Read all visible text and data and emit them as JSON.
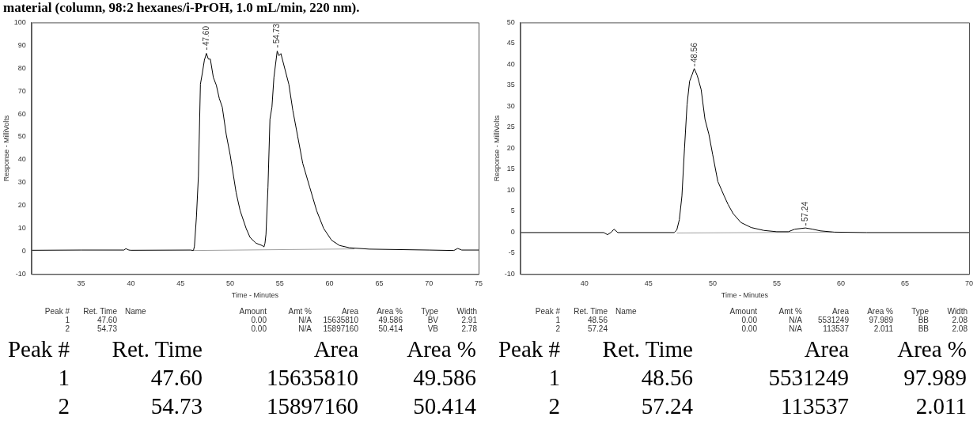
{
  "chart_data": [
    {
      "type": "line",
      "title": "material (column, 98:2 hexanes/i-PrOH, 1.0 mL/min, 220 nm).",
      "xlabel": "Time - Minutes",
      "ylabel": "Response - MilliVolts",
      "xlim": [
        30,
        75
      ],
      "xticks": [
        35,
        40,
        45,
        50,
        55,
        60,
        65,
        70,
        75
      ],
      "ylim": [
        -10,
        100
      ],
      "yticks": [
        -10,
        0,
        10,
        20,
        30,
        40,
        50,
        60,
        70,
        80,
        90,
        100
      ],
      "grid": false,
      "legend": false,
      "marker": "none",
      "line_style": "solid",
      "series": [
        {
          "color": "#000000",
          "x": [
            30,
            35,
            39.3,
            39.5,
            39.8,
            40,
            46,
            46.3,
            46.4,
            46.6,
            46.8,
            47.0,
            47.2,
            47.4,
            47.6,
            47.8,
            48.0,
            48.3,
            48.6,
            48.9,
            49.2,
            49.6,
            50.0,
            50.6,
            51.0,
            51.6,
            52.0,
            52.6,
            53.2,
            53.4,
            53.5,
            53.6,
            53.8,
            54.0,
            54.2,
            54.4,
            54.73,
            54.9,
            55.1,
            55.5,
            55.9,
            56.3,
            56.8,
            57.3,
            58.0,
            58.7,
            59.4,
            60.2,
            61.0,
            62.0,
            64.0,
            70.0,
            72.5,
            72.9,
            73.3,
            75
          ],
          "values": [
            0.4,
            0.5,
            0.5,
            1.1,
            0.5,
            0.4,
            0.5,
            0.3,
            2.2,
            15,
            33,
            73,
            78,
            83.5,
            86.5,
            84,
            84,
            76,
            72.6,
            66.8,
            63,
            51,
            42,
            25.5,
            17.7,
            10,
            6,
            3.5,
            2.5,
            1.9,
            3.5,
            7.4,
            28,
            57.7,
            63,
            76,
            87.5,
            85.5,
            86.4,
            79.7,
            73,
            61.6,
            50,
            38.4,
            28,
            17.7,
            10,
            4.8,
            2.5,
            1.5,
            0.9,
            0.5,
            0.3,
            1.2,
            0.5,
            0.5
          ]
        },
        {
          "color": "#a0a0a0",
          "x": [
            46.3,
            62.5
          ],
          "values": [
            0.3,
            1.0
          ]
        }
      ],
      "annotations": [
        {
          "text": "47.60",
          "x": 47.6,
          "y": 87
        },
        {
          "text": "54.73",
          "x": 54.73,
          "y": 88
        },
        "Peak #\tRet. Time\tName\tAmount\tAmt %\tArea\tArea %\tType\tWidth",
        "1\t47.60\t\t0.00\tN/A\t15635810\t49.586\tBV\t2.91",
        "2\t54.73\t\t0.00\tN/A\t15897160\t50.414\tVB\t2.78",
        "Peak #\tRet. Time\tArea\tArea %",
        "1\t47.60\t15635810\t49.586",
        "2\t54.73\t15897160\t50.414"
      ]
    },
    {
      "type": "line",
      "xlabel": "Time - Minutes",
      "ylabel": "Response - MilliVolts",
      "xlim": [
        35,
        70
      ],
      "xticks": [
        40,
        45,
        50,
        55,
        60,
        65,
        70
      ],
      "ylim": [
        -10,
        50
      ],
      "yticks": [
        -10,
        -5,
        0,
        5,
        10,
        15,
        20,
        25,
        30,
        35,
        40,
        45,
        50
      ],
      "grid": false,
      "legend": false,
      "marker": "none",
      "line_style": "solid",
      "series": [
        {
          "color": "#000000",
          "x": [
            35,
            41.5,
            41.8,
            42.1,
            42.3,
            42.6,
            47.0,
            47.2,
            47.4,
            47.6,
            47.8,
            48.0,
            48.2,
            48.4,
            48.56,
            48.8,
            49.1,
            49.4,
            49.7,
            50.0,
            50.4,
            50.9,
            51.2,
            51.6,
            52.2,
            53.0,
            54.0,
            55.0,
            55.9,
            56.4,
            57.24,
            57.8,
            58.4,
            59.5,
            62,
            70
          ],
          "values": [
            -0.1,
            -0.1,
            -0.6,
            0,
            0.7,
            -0.1,
            -0.1,
            0.5,
            3,
            8.6,
            19.9,
            30.4,
            36,
            37.6,
            39,
            37.3,
            34,
            26.9,
            23.4,
            18.5,
            12.1,
            8.6,
            6.6,
            4.4,
            2.3,
            1.1,
            0.4,
            0.1,
            0.1,
            0.7,
            1.0,
            0.7,
            0.3,
            0,
            -0.1,
            -0.1
          ]
        },
        {
          "color": "#a0a0a0",
          "x": [
            47.2,
            59.3
          ],
          "values": [
            -0.2,
            0.0
          ]
        }
      ],
      "annotations": [
        {
          "text": "48.56",
          "x": 48.56,
          "y": 39
        },
        {
          "text": "57.24",
          "x": 57.24,
          "y": 1.0
        },
        "Peak #\tRet. Time\tName\tAmount\tAmt %\tArea\tArea %\tType\tWidth",
        "1\t48.56\t\t0.00\tN/A\t5531249\t97.989\tBB\t2.08",
        "2\t57.24\t\t0.00\tN/A\t113537\t2.011\tBB\t2.08",
        "Peak #\tRet. Time\tArea\tArea %",
        "1\t48.56\t5531249\t97.989",
        "2\t57.24\t113537\t2.011"
      ]
    }
  ]
}
